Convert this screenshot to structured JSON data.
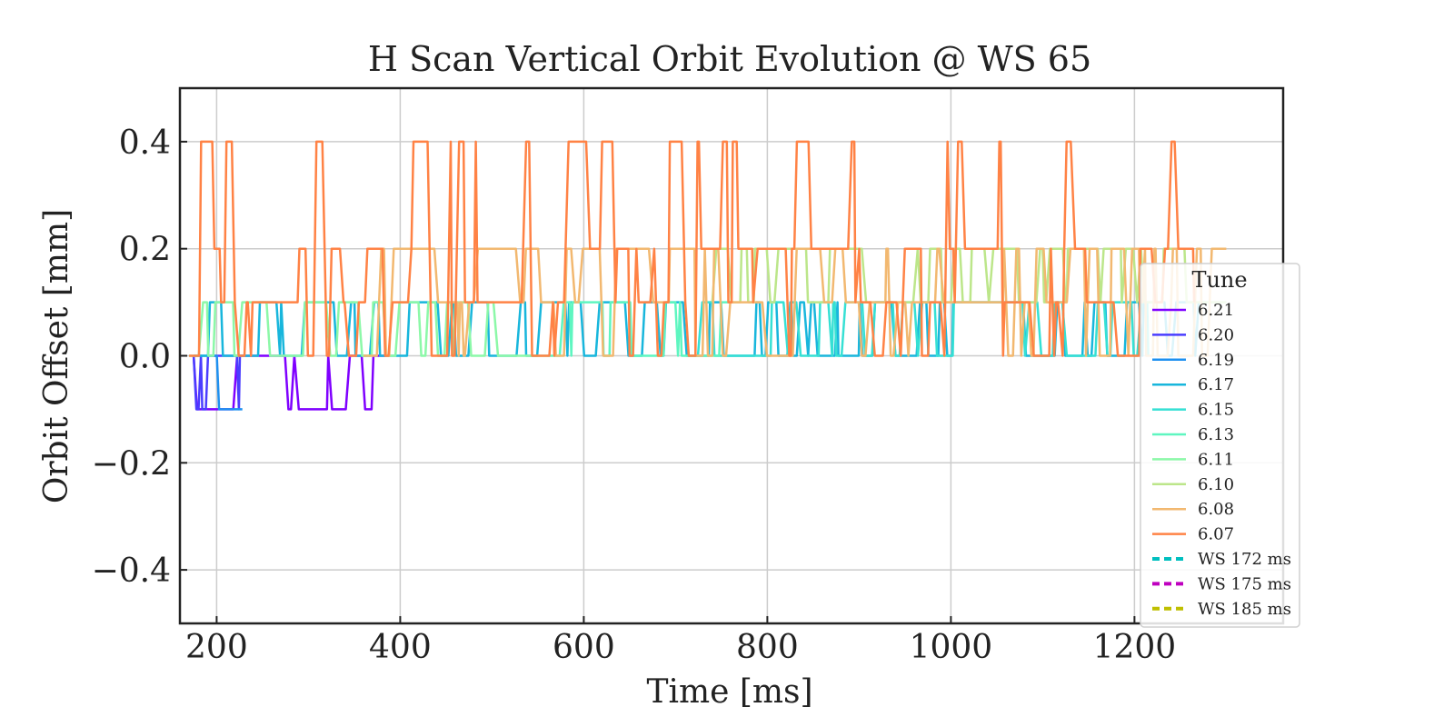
{
  "chart_data": {
    "type": "line",
    "title": "H Scan Vertical Orbit Evolution @ WS 65",
    "xlabel": "Time [ms]",
    "ylabel": "Orbit Offset [mm]",
    "xlim": [
      160,
      1362
    ],
    "ylim": [
      -0.5,
      0.5
    ],
    "xticks": [
      200,
      400,
      600,
      800,
      1000,
      1200
    ],
    "yticks": [
      -0.4,
      -0.2,
      0.0,
      0.2,
      0.4
    ],
    "ytick_labels": [
      "−0.4",
      "−0.2",
      "0.0",
      "0.2",
      "0.4"
    ],
    "grid": true,
    "legend": {
      "title": "Tune",
      "placement": "lower-right",
      "entries": [
        {
          "label": "6.21",
          "color": "#7f00ff",
          "dashed": false
        },
        {
          "label": "6.20",
          "color": "#4a3dff",
          "dashed": false
        },
        {
          "label": "6.19",
          "color": "#1e90f0",
          "dashed": false
        },
        {
          "label": "6.17",
          "color": "#18b6dc",
          "dashed": false
        },
        {
          "label": "6.15",
          "color": "#36e0d4",
          "dashed": false
        },
        {
          "label": "6.13",
          "color": "#5ef6c0",
          "dashed": false
        },
        {
          "label": "6.11",
          "color": "#8cf8a8",
          "dashed": false
        },
        {
          "label": "6.10",
          "color": "#bce68a",
          "dashed": false
        },
        {
          "label": "6.08",
          "color": "#f2b870",
          "dashed": false
        },
        {
          "label": "6.07",
          "color": "#ff8245",
          "dashed": false
        },
        {
          "label": "WS 172 ms",
          "color": "#00bfbf",
          "dashed": true
        },
        {
          "label": "WS 175 ms",
          "color": "#bf00bf",
          "dashed": true
        },
        {
          "label": "WS 185 ms",
          "color": "#bfbf00",
          "dashed": true
        }
      ]
    },
    "series": [
      {
        "name": "6.21",
        "color": "#7f00ff",
        "x_range": [
          175,
          384
        ],
        "levels": [
          0.0,
          -0.1
        ]
      },
      {
        "name": "6.20",
        "color": "#4a3dff",
        "x_range": [
          175,
          230
        ],
        "levels": [
          0.0,
          -0.1
        ]
      },
      {
        "name": "6.19",
        "color": "#1e90f0",
        "x_range": [
          175,
          228
        ],
        "levels": [
          0.0,
          -0.1
        ]
      },
      {
        "name": "6.17",
        "color": "#18b6dc",
        "x_range": [
          175,
          1300
        ],
        "levels": [
          0.0,
          0.1
        ]
      },
      {
        "name": "6.15",
        "color": "#36e0d4",
        "x_range": [
          720,
          1215
        ],
        "levels": [
          0.0,
          0.1
        ]
      },
      {
        "name": "6.13",
        "color": "#5ef6c0",
        "x_range": [
          560,
          760
        ],
        "levels": [
          0.0,
          0.1
        ]
      },
      {
        "name": "6.11",
        "color": "#8cf8a8",
        "x_range": [
          170,
          560
        ],
        "levels": [
          0.0,
          0.1
        ]
      },
      {
        "name": "6.10",
        "color": "#bce68a",
        "x_range": [
          740,
          1300
        ],
        "levels": [
          0.1,
          0.2
        ]
      },
      {
        "name": "6.08",
        "color": "#f2b870",
        "x_range": [
          360,
          1300
        ],
        "levels": [
          0.0,
          0.1,
          0.2
        ]
      },
      {
        "name": "6.07",
        "color": "#ff8245",
        "x_range": [
          170,
          1265
        ],
        "levels": [
          0.0,
          0.1,
          0.2,
          0.4
        ]
      }
    ]
  }
}
